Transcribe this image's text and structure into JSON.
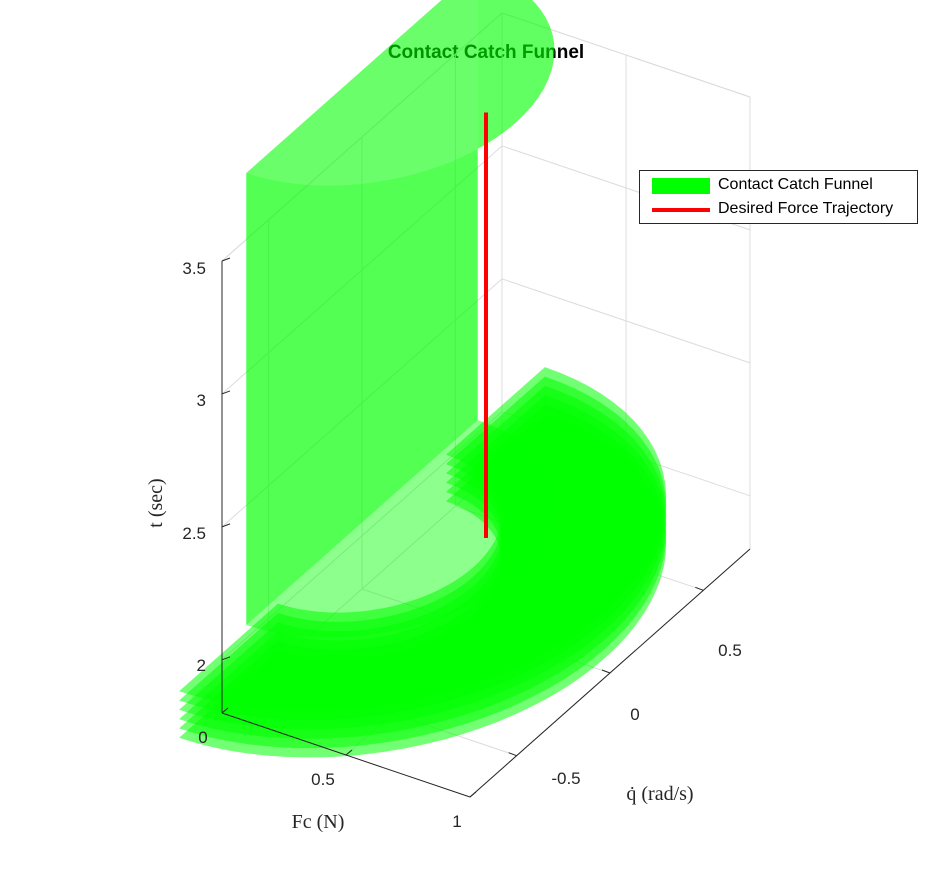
{
  "colors": {
    "funnel": "#00ff00",
    "trajectory": "#ff0000",
    "grid": "#dcdcdc",
    "axis": "#262626"
  },
  "chart_data": {
    "type": "surface3d",
    "title": "Contact Catch Funnel",
    "xlabel": "Fc (N)",
    "ylabel": "q̇ (rad/s)",
    "zlabel": "t (sec)",
    "xlim": [
      0,
      1
    ],
    "ylim": [
      -0.75,
      0.75
    ],
    "zlim": [
      1.8,
      3.5
    ],
    "x_ticks": [
      "0",
      "0.5",
      "1"
    ],
    "y_ticks": [
      "-0.5",
      "0",
      "0.5"
    ],
    "z_ticks": [
      "2",
      "2.5",
      "3",
      "3.5"
    ],
    "grid": true,
    "legend_position": "top-right",
    "series": [
      {
        "name": "Contact Catch Funnel",
        "kind": "surface",
        "description_shape": "half-disc cross-section in (Fc, q̇) extruded along t; wide ring at t≈1.85–2.05 narrowing to a half-cylinder up to t≈3.75"
      },
      {
        "name": "Desired Force Trajectory",
        "kind": "line",
        "points": [
          {
            "Fc": 0.5,
            "qdot": 0,
            "t": 2.15
          },
          {
            "Fc": 0.5,
            "qdot": 0,
            "t": 3.75
          }
        ]
      }
    ]
  }
}
